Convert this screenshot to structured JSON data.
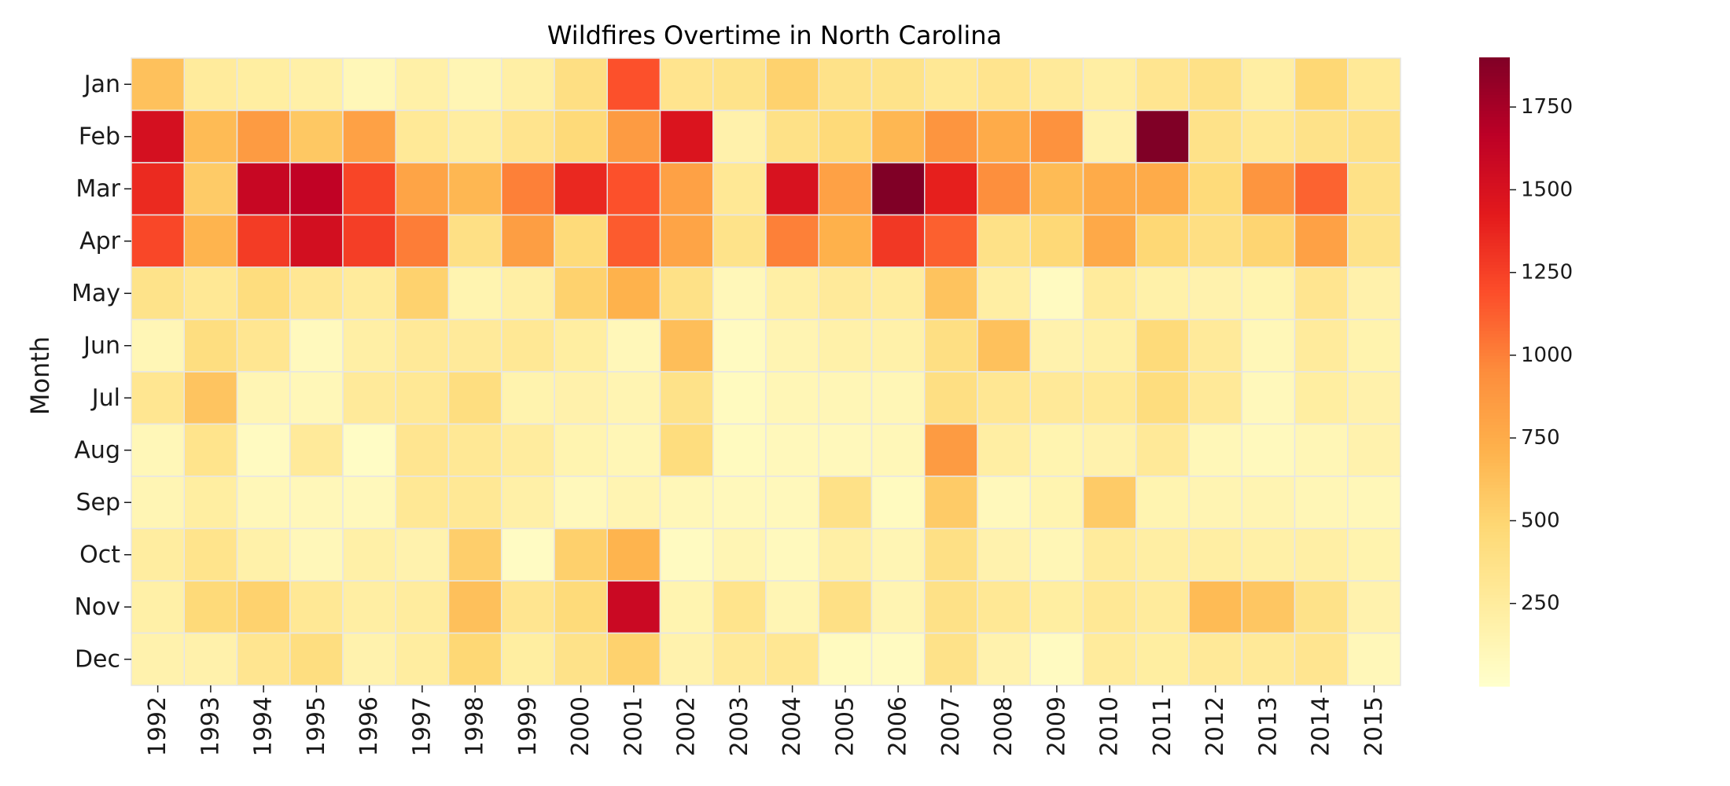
{
  "chart_data": {
    "type": "heatmap",
    "title": "Wildfires Overtime in North Carolina",
    "xlabel": "",
    "ylabel": "Month",
    "x_categories": [
      "1992",
      "1993",
      "1994",
      "1995",
      "1996",
      "1997",
      "1998",
      "1999",
      "2000",
      "2001",
      "2002",
      "2003",
      "2004",
      "2005",
      "2006",
      "2007",
      "2008",
      "2009",
      "2010",
      "2011",
      "2012",
      "2013",
      "2014",
      "2015"
    ],
    "y_categories": [
      "Jan",
      "Feb",
      "Mar",
      "Apr",
      "May",
      "Jun",
      "Jul",
      "Aug",
      "Sep",
      "Oct",
      "Nov",
      "Dec"
    ],
    "values": [
      [
        620,
        260,
        230,
        200,
        110,
        200,
        130,
        210,
        400,
        1180,
        340,
        360,
        520,
        370,
        360,
        300,
        340,
        270,
        220,
        330,
        380,
        220,
        480,
        290
      ],
      [
        1520,
        660,
        860,
        580,
        820,
        290,
        240,
        340,
        460,
        860,
        1480,
        180,
        380,
        460,
        680,
        900,
        760,
        920,
        180,
        1900,
        370,
        300,
        370,
        380
      ],
      [
        1350,
        560,
        1600,
        1640,
        1230,
        800,
        680,
        1000,
        1360,
        1180,
        820,
        300,
        1500,
        820,
        1900,
        1400,
        940,
        660,
        760,
        760,
        450,
        900,
        1110,
        380
      ],
      [
        1220,
        700,
        1270,
        1530,
        1260,
        1010,
        390,
        840,
        450,
        1140,
        800,
        360,
        1000,
        720,
        1290,
        1120,
        380,
        470,
        770,
        480,
        400,
        500,
        820,
        370
      ],
      [
        360,
        300,
        430,
        310,
        260,
        520,
        150,
        210,
        520,
        710,
        380,
        100,
        210,
        270,
        250,
        610,
        220,
        60,
        260,
        190,
        170,
        150,
        330,
        180
      ],
      [
        120,
        420,
        320,
        80,
        210,
        280,
        270,
        300,
        230,
        100,
        640,
        60,
        140,
        190,
        190,
        400,
        620,
        170,
        200,
        450,
        270,
        110,
        260,
        160
      ],
      [
        320,
        600,
        130,
        110,
        270,
        300,
        420,
        160,
        180,
        140,
        370,
        70,
        120,
        120,
        120,
        400,
        310,
        280,
        290,
        430,
        280,
        90,
        230,
        180
      ],
      [
        110,
        350,
        60,
        270,
        40,
        330,
        300,
        250,
        150,
        120,
        430,
        70,
        90,
        90,
        110,
        860,
        220,
        150,
        170,
        280,
        110,
        80,
        120,
        170
      ],
      [
        130,
        230,
        110,
        100,
        90,
        300,
        300,
        200,
        90,
        140,
        110,
        90,
        90,
        380,
        70,
        560,
        90,
        150,
        560,
        150,
        140,
        140,
        120,
        110
      ],
      [
        240,
        350,
        190,
        100,
        200,
        170,
        540,
        50,
        530,
        700,
        60,
        130,
        80,
        210,
        130,
        390,
        170,
        120,
        260,
        220,
        220,
        200,
        210,
        160
      ],
      [
        200,
        460,
        520,
        300,
        220,
        250,
        630,
        330,
        450,
        1580,
        150,
        350,
        130,
        390,
        140,
        380,
        300,
        230,
        300,
        260,
        660,
        590,
        370,
        170
      ],
      [
        170,
        180,
        330,
        420,
        170,
        240,
        480,
        230,
        370,
        520,
        170,
        280,
        310,
        70,
        60,
        370,
        170,
        60,
        260,
        230,
        280,
        280,
        330,
        100
      ]
    ],
    "colorbar": {
      "ticks": [
        250,
        500,
        750,
        1000,
        1250,
        1500,
        1750
      ],
      "min": 0,
      "max": 1900,
      "colormap": "YlOrRd"
    },
    "grid_line_color": "#e6e6e6"
  }
}
